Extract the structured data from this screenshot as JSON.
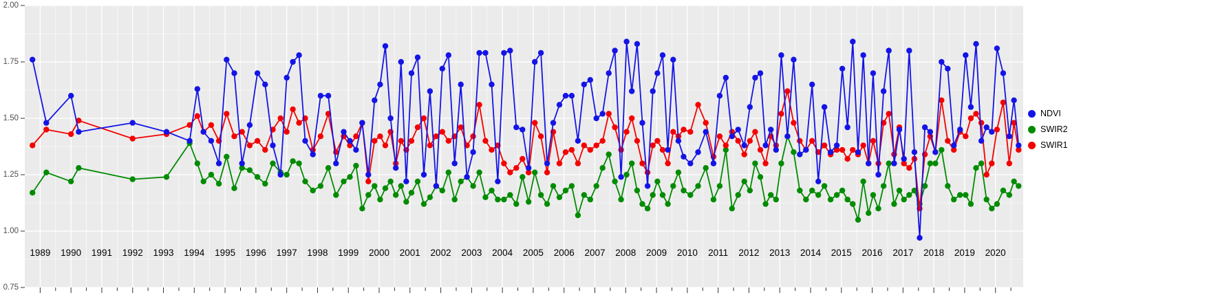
{
  "colors": {
    "panel_bg": "#EBEBEB",
    "grid_major": "#FFFFFF",
    "grid_minor": "#F4F4F4",
    "axis_tick": "#333333",
    "axis_text_y": "#4D4D4D",
    "axis_text_x": "#000000",
    "ndvi_blue": "#1414E6",
    "swir2_green": "#008B00",
    "swir1_red": "#F40000"
  },
  "chart_data": {
    "type": "line",
    "title": "",
    "xlabel": "",
    "ylabel": "",
    "grid": true,
    "markers": true,
    "legend_position": "right",
    "ylim": [
      0.75,
      2.0
    ],
    "xlim": [
      1988.5,
      2020.9
    ],
    "y_ticks": [
      0.75,
      1.0,
      1.25,
      1.5,
      1.75,
      2.0
    ],
    "y_tick_labels": [
      "0.75",
      "1.00",
      "1.25",
      "1.50",
      "1.75",
      "2.00"
    ],
    "x_ticks": [
      1989,
      1990,
      1991,
      1992,
      1993,
      1994,
      1995,
      1996,
      1997,
      1998,
      1999,
      2000,
      2001,
      2002,
      2003,
      2004,
      2005,
      2006,
      2007,
      2008,
      2009,
      2010,
      2011,
      2012,
      2013,
      2014,
      2015,
      2016,
      2017,
      2018,
      2019,
      2020
    ],
    "x_tick_labels": [
      "1989",
      "1990",
      "1991",
      "1992",
      "1993",
      "1994",
      "1995",
      "1996",
      "1997",
      "1998",
      "1999",
      "2000",
      "2001",
      "2002",
      "2003",
      "2004",
      "2005",
      "2006",
      "2007",
      "2008",
      "2009",
      "2010",
      "2011",
      "2012",
      "2013",
      "2014",
      "2015",
      "2016",
      "2017",
      "2018",
      "2019",
      "2020"
    ],
    "x": [
      1988.75,
      1989.2,
      1990.0,
      1990.25,
      1992.0,
      1993.1,
      1993.85,
      1994.1,
      1994.3,
      1994.55,
      1994.8,
      1995.05,
      1995.3,
      1995.55,
      1995.8,
      1996.05,
      1996.3,
      1996.55,
      1996.8,
      1997.0,
      1997.2,
      1997.4,
      1997.6,
      1997.85,
      1998.1,
      1998.35,
      1998.6,
      1998.85,
      1999.05,
      1999.25,
      1999.45,
      1999.65,
      1999.85,
      2000.03,
      2000.2,
      2000.37,
      2000.54,
      2000.71,
      2000.88,
      2001.05,
      2001.25,
      2001.45,
      2001.65,
      2001.85,
      2002.05,
      2002.25,
      2002.45,
      2002.65,
      2002.85,
      2003.05,
      2003.25,
      2003.45,
      2003.65,
      2003.85,
      2004.05,
      2004.25,
      2004.45,
      2004.65,
      2004.85,
      2005.05,
      2005.25,
      2005.45,
      2005.65,
      2005.85,
      2006.05,
      2006.25,
      2006.45,
      2006.65,
      2006.85,
      2007.05,
      2007.25,
      2007.45,
      2007.65,
      2007.85,
      2008.03,
      2008.2,
      2008.37,
      2008.54,
      2008.71,
      2008.88,
      2009.03,
      2009.2,
      2009.37,
      2009.54,
      2009.71,
      2009.88,
      2010.1,
      2010.35,
      2010.6,
      2010.85,
      2011.05,
      2011.25,
      2011.45,
      2011.65,
      2011.85,
      2012.03,
      2012.2,
      2012.37,
      2012.54,
      2012.71,
      2012.88,
      2013.05,
      2013.25,
      2013.45,
      2013.65,
      2013.85,
      2014.05,
      2014.25,
      2014.45,
      2014.65,
      2014.85,
      2015.03,
      2015.2,
      2015.37,
      2015.54,
      2015.71,
      2015.88,
      2016.03,
      2016.2,
      2016.37,
      2016.54,
      2016.71,
      2016.88,
      2017.03,
      2017.2,
      2017.37,
      2017.54,
      2017.71,
      2017.88,
      2018.05,
      2018.25,
      2018.45,
      2018.65,
      2018.85,
      2019.03,
      2019.2,
      2019.37,
      2019.54,
      2019.71,
      2019.88,
      2020.05,
      2020.25,
      2020.45,
      2020.6,
      2020.75
    ],
    "series": [
      {
        "name": "NDVI",
        "color": "#1414E6",
        "values": [
          1.76,
          1.48,
          1.6,
          1.44,
          1.48,
          1.44,
          1.4,
          1.63,
          1.44,
          1.4,
          1.3,
          1.76,
          1.7,
          1.3,
          1.47,
          1.7,
          1.65,
          1.38,
          1.25,
          1.68,
          1.75,
          1.78,
          1.4,
          1.34,
          1.6,
          1.6,
          1.3,
          1.44,
          1.4,
          1.36,
          1.48,
          1.25,
          1.58,
          1.65,
          1.82,
          1.5,
          1.28,
          1.75,
          1.22,
          1.7,
          1.77,
          1.25,
          1.62,
          1.2,
          1.72,
          1.78,
          1.3,
          1.65,
          1.24,
          1.35,
          1.79,
          1.79,
          1.65,
          1.22,
          1.79,
          1.8,
          1.46,
          1.45,
          1.28,
          1.75,
          1.79,
          1.3,
          1.48,
          1.56,
          1.6,
          1.6,
          1.4,
          1.65,
          1.67,
          1.5,
          1.52,
          1.7,
          1.8,
          1.24,
          1.84,
          1.62,
          1.83,
          1.48,
          1.2,
          1.62,
          1.7,
          1.78,
          1.36,
          1.76,
          1.4,
          1.33,
          1.3,
          1.35,
          1.44,
          1.3,
          1.6,
          1.68,
          1.42,
          1.45,
          1.38,
          1.55,
          1.68,
          1.7,
          1.38,
          1.45,
          1.36,
          1.78,
          1.42,
          1.76,
          1.34,
          1.36,
          1.65,
          1.22,
          1.55,
          1.35,
          1.38,
          1.72,
          1.46,
          1.84,
          1.35,
          1.78,
          1.3,
          1.7,
          1.25,
          1.62,
          1.8,
          1.3,
          1.45,
          1.32,
          1.8,
          1.35,
          0.97,
          1.46,
          1.44,
          1.35,
          1.75,
          1.72,
          1.38,
          1.45,
          1.78,
          1.55,
          1.83,
          1.4,
          1.46,
          1.44,
          1.81,
          1.7,
          1.42,
          1.58,
          1.38
        ]
      },
      {
        "name": "SWIR2",
        "color": "#008B00",
        "values": [
          1.17,
          1.26,
          1.22,
          1.28,
          1.23,
          1.24,
          1.39,
          1.3,
          1.22,
          1.25,
          1.21,
          1.33,
          1.19,
          1.28,
          1.27,
          1.24,
          1.21,
          1.3,
          1.26,
          1.25,
          1.31,
          1.3,
          1.22,
          1.18,
          1.2,
          1.28,
          1.16,
          1.22,
          1.24,
          1.29,
          1.1,
          1.16,
          1.2,
          1.14,
          1.19,
          1.22,
          1.16,
          1.2,
          1.13,
          1.17,
          1.22,
          1.12,
          1.15,
          1.2,
          1.18,
          1.26,
          1.14,
          1.22,
          1.24,
          1.2,
          1.26,
          1.15,
          1.18,
          1.14,
          1.14,
          1.16,
          1.12,
          1.24,
          1.13,
          1.26,
          1.16,
          1.12,
          1.2,
          1.15,
          1.18,
          1.2,
          1.07,
          1.16,
          1.14,
          1.2,
          1.28,
          1.34,
          1.22,
          1.14,
          1.25,
          1.3,
          1.18,
          1.12,
          1.1,
          1.16,
          1.22,
          1.16,
          1.12,
          1.2,
          1.26,
          1.18,
          1.16,
          1.2,
          1.28,
          1.14,
          1.2,
          1.36,
          1.1,
          1.16,
          1.22,
          1.18,
          1.3,
          1.24,
          1.12,
          1.16,
          1.14,
          1.3,
          1.42,
          1.35,
          1.18,
          1.14,
          1.18,
          1.16,
          1.2,
          1.14,
          1.16,
          1.18,
          1.14,
          1.12,
          1.05,
          1.22,
          1.08,
          1.16,
          1.1,
          1.2,
          1.3,
          1.12,
          1.18,
          1.14,
          1.16,
          1.18,
          1.12,
          1.2,
          1.3,
          1.3,
          1.36,
          1.2,
          1.14,
          1.16,
          1.16,
          1.12,
          1.28,
          1.3,
          1.14,
          1.1,
          1.12,
          1.18,
          1.16,
          1.22,
          1.2
        ]
      },
      {
        "name": "SWIR1",
        "color": "#F40000",
        "values": [
          1.38,
          1.45,
          1.43,
          1.49,
          1.41,
          1.43,
          1.47,
          1.51,
          1.44,
          1.47,
          1.4,
          1.52,
          1.42,
          1.44,
          1.38,
          1.4,
          1.36,
          1.45,
          1.5,
          1.44,
          1.54,
          1.48,
          1.5,
          1.36,
          1.42,
          1.52,
          1.35,
          1.42,
          1.38,
          1.42,
          1.48,
          1.22,
          1.4,
          1.42,
          1.38,
          1.44,
          1.3,
          1.4,
          1.36,
          1.4,
          1.46,
          1.5,
          1.38,
          1.42,
          1.44,
          1.4,
          1.42,
          1.46,
          1.38,
          1.42,
          1.56,
          1.4,
          1.36,
          1.38,
          1.3,
          1.26,
          1.28,
          1.32,
          1.26,
          1.48,
          1.42,
          1.26,
          1.44,
          1.3,
          1.35,
          1.36,
          1.3,
          1.38,
          1.36,
          1.38,
          1.4,
          1.52,
          1.46,
          1.36,
          1.44,
          1.5,
          1.4,
          1.3,
          1.26,
          1.38,
          1.4,
          1.36,
          1.3,
          1.44,
          1.42,
          1.45,
          1.44,
          1.56,
          1.48,
          1.33,
          1.42,
          1.38,
          1.44,
          1.4,
          1.34,
          1.4,
          1.44,
          1.36,
          1.3,
          1.42,
          1.38,
          1.52,
          1.62,
          1.48,
          1.4,
          1.36,
          1.4,
          1.35,
          1.38,
          1.34,
          1.36,
          1.36,
          1.32,
          1.36,
          1.34,
          1.38,
          1.3,
          1.4,
          1.3,
          1.48,
          1.52,
          1.34,
          1.46,
          1.3,
          1.28,
          1.32,
          1.1,
          1.34,
          1.42,
          1.35,
          1.58,
          1.4,
          1.36,
          1.44,
          1.42,
          1.5,
          1.52,
          1.48,
          1.25,
          1.3,
          1.45,
          1.57,
          1.3,
          1.48,
          1.36
        ]
      }
    ]
  }
}
